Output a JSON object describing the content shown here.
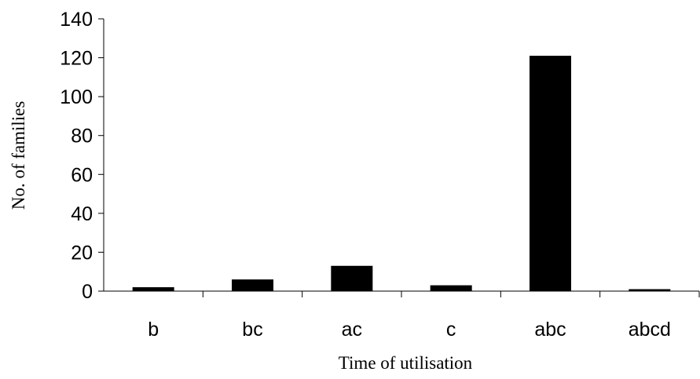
{
  "chart_data": {
    "type": "bar",
    "categories": [
      "b",
      "bc",
      "ac",
      "c",
      "abc",
      "abcd"
    ],
    "values": [
      2,
      6,
      13,
      3,
      121,
      1
    ],
    "xlabel": "Time of utilisation",
    "ylabel": "No. of families",
    "ylim": [
      0,
      140
    ],
    "yticks": [
      0,
      20,
      40,
      60,
      80,
      100,
      120,
      140
    ],
    "grid": false,
    "bar_color": "#000000"
  }
}
